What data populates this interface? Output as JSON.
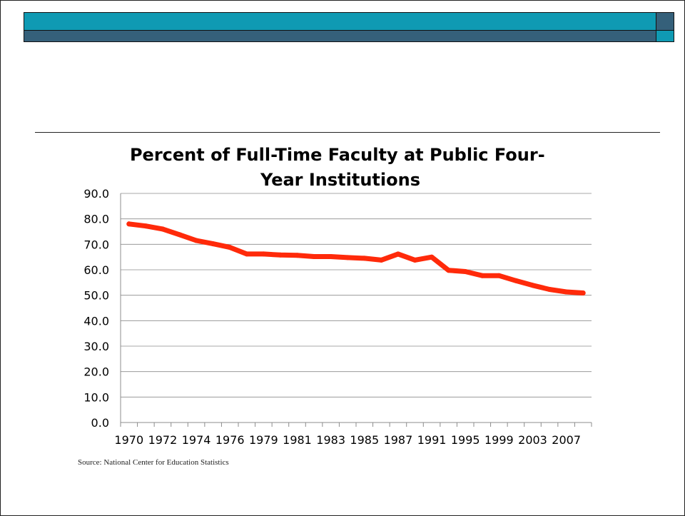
{
  "slide": {
    "banner_colors": {
      "teal": "#0f9ab3",
      "slate": "#35607a"
    },
    "source_note": "Source: National Center for Education Statistics"
  },
  "chart_data": {
    "type": "line",
    "title_lines": [
      "Percent of Full-Time Faculty at Public Four-",
      "Year Institutions"
    ],
    "xlabel": "",
    "ylabel": "",
    "ylim": [
      0,
      90
    ],
    "y_ticks": [
      "0.0",
      "10.0",
      "20.0",
      "30.0",
      "40.0",
      "50.0",
      "60.0",
      "70.0",
      "80.0",
      "90.0"
    ],
    "x_tick_labels": [
      "1970",
      "1972",
      "1974",
      "1976",
      "1979",
      "1981",
      "1983",
      "1985",
      "1987",
      "1991",
      "1995",
      "1999",
      "2003",
      "2007"
    ],
    "grid": true,
    "line_color": "#ff2a0a",
    "series": [
      {
        "values": [
          78.0,
          77.2,
          76.0,
          73.8,
          71.5,
          70.2,
          68.8,
          66.2,
          66.2,
          65.8,
          65.7,
          65.2,
          65.2,
          64.8,
          64.5,
          63.8,
          66.2,
          63.8,
          65.0,
          59.8,
          59.3,
          57.7,
          57.7,
          55.7,
          53.9,
          52.3,
          51.3,
          50.9
        ]
      }
    ]
  }
}
